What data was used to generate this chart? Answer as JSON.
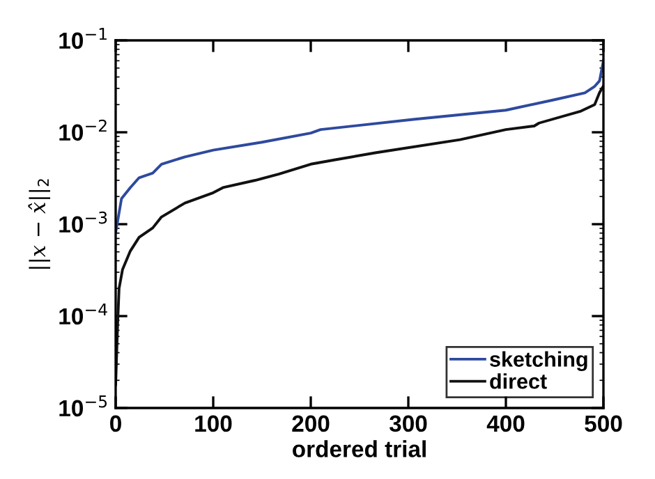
{
  "chart_data": {
    "type": "line",
    "xlabel": "ordered trial",
    "ylabel": "||x − x̂||$_{2}$",
    "log": "y",
    "grid": false,
    "legend": "bottom right",
    "line_style": "solid",
    "marker": "none",
    "xlim": [
      0,
      500
    ],
    "xticks": [
      0,
      100,
      200,
      300,
      400,
      500
    ],
    "ylim": [
      1e-05,
      0.1
    ],
    "yticks": [
      {
        "value": 1e-05,
        "label": "10$^{−5}$"
      },
      {
        "value": 0.0001,
        "label": "10$^{−4}$"
      },
      {
        "value": 0.001,
        "label": "10$^{−3}$"
      },
      {
        "value": 0.01,
        "label": "10$^{−2}$"
      },
      {
        "value": 0.1,
        "label": "10$^{−1}$"
      }
    ],
    "series": [
      {
        "name": "sketching",
        "color": "#2e4a9e",
        "x": [
          0,
          6,
          15,
          24,
          38,
          47,
          71,
          100,
          150,
          200,
          210,
          305,
          400,
          448,
          481,
          491,
          496,
          500
        ],
        "values": [
          0.00081,
          0.0019,
          0.0025,
          0.0032,
          0.0036,
          0.0045,
          0.0054,
          0.0064,
          0.0078,
          0.0098,
          0.0107,
          0.0138,
          0.0174,
          0.0224,
          0.0269,
          0.0316,
          0.0363,
          0.06
        ]
      },
      {
        "name": "direct",
        "color": "#111111",
        "x": [
          0,
          2,
          3.5,
          7,
          15,
          24,
          38,
          47,
          71,
          100,
          110,
          143,
          167,
          200,
          224,
          267,
          353,
          400,
          429,
          434,
          477,
          491,
          496,
          500
        ],
        "values": [
          1.8e-05,
          8.1e-05,
          0.0002,
          0.00032,
          0.00051,
          0.00072,
          0.00091,
          0.0012,
          0.0017,
          0.0022,
          0.0025,
          0.003,
          0.0035,
          0.0045,
          0.005,
          0.006,
          0.0083,
          0.0107,
          0.0117,
          0.0126,
          0.017,
          0.02,
          0.027,
          0.032
        ]
      }
    ]
  }
}
